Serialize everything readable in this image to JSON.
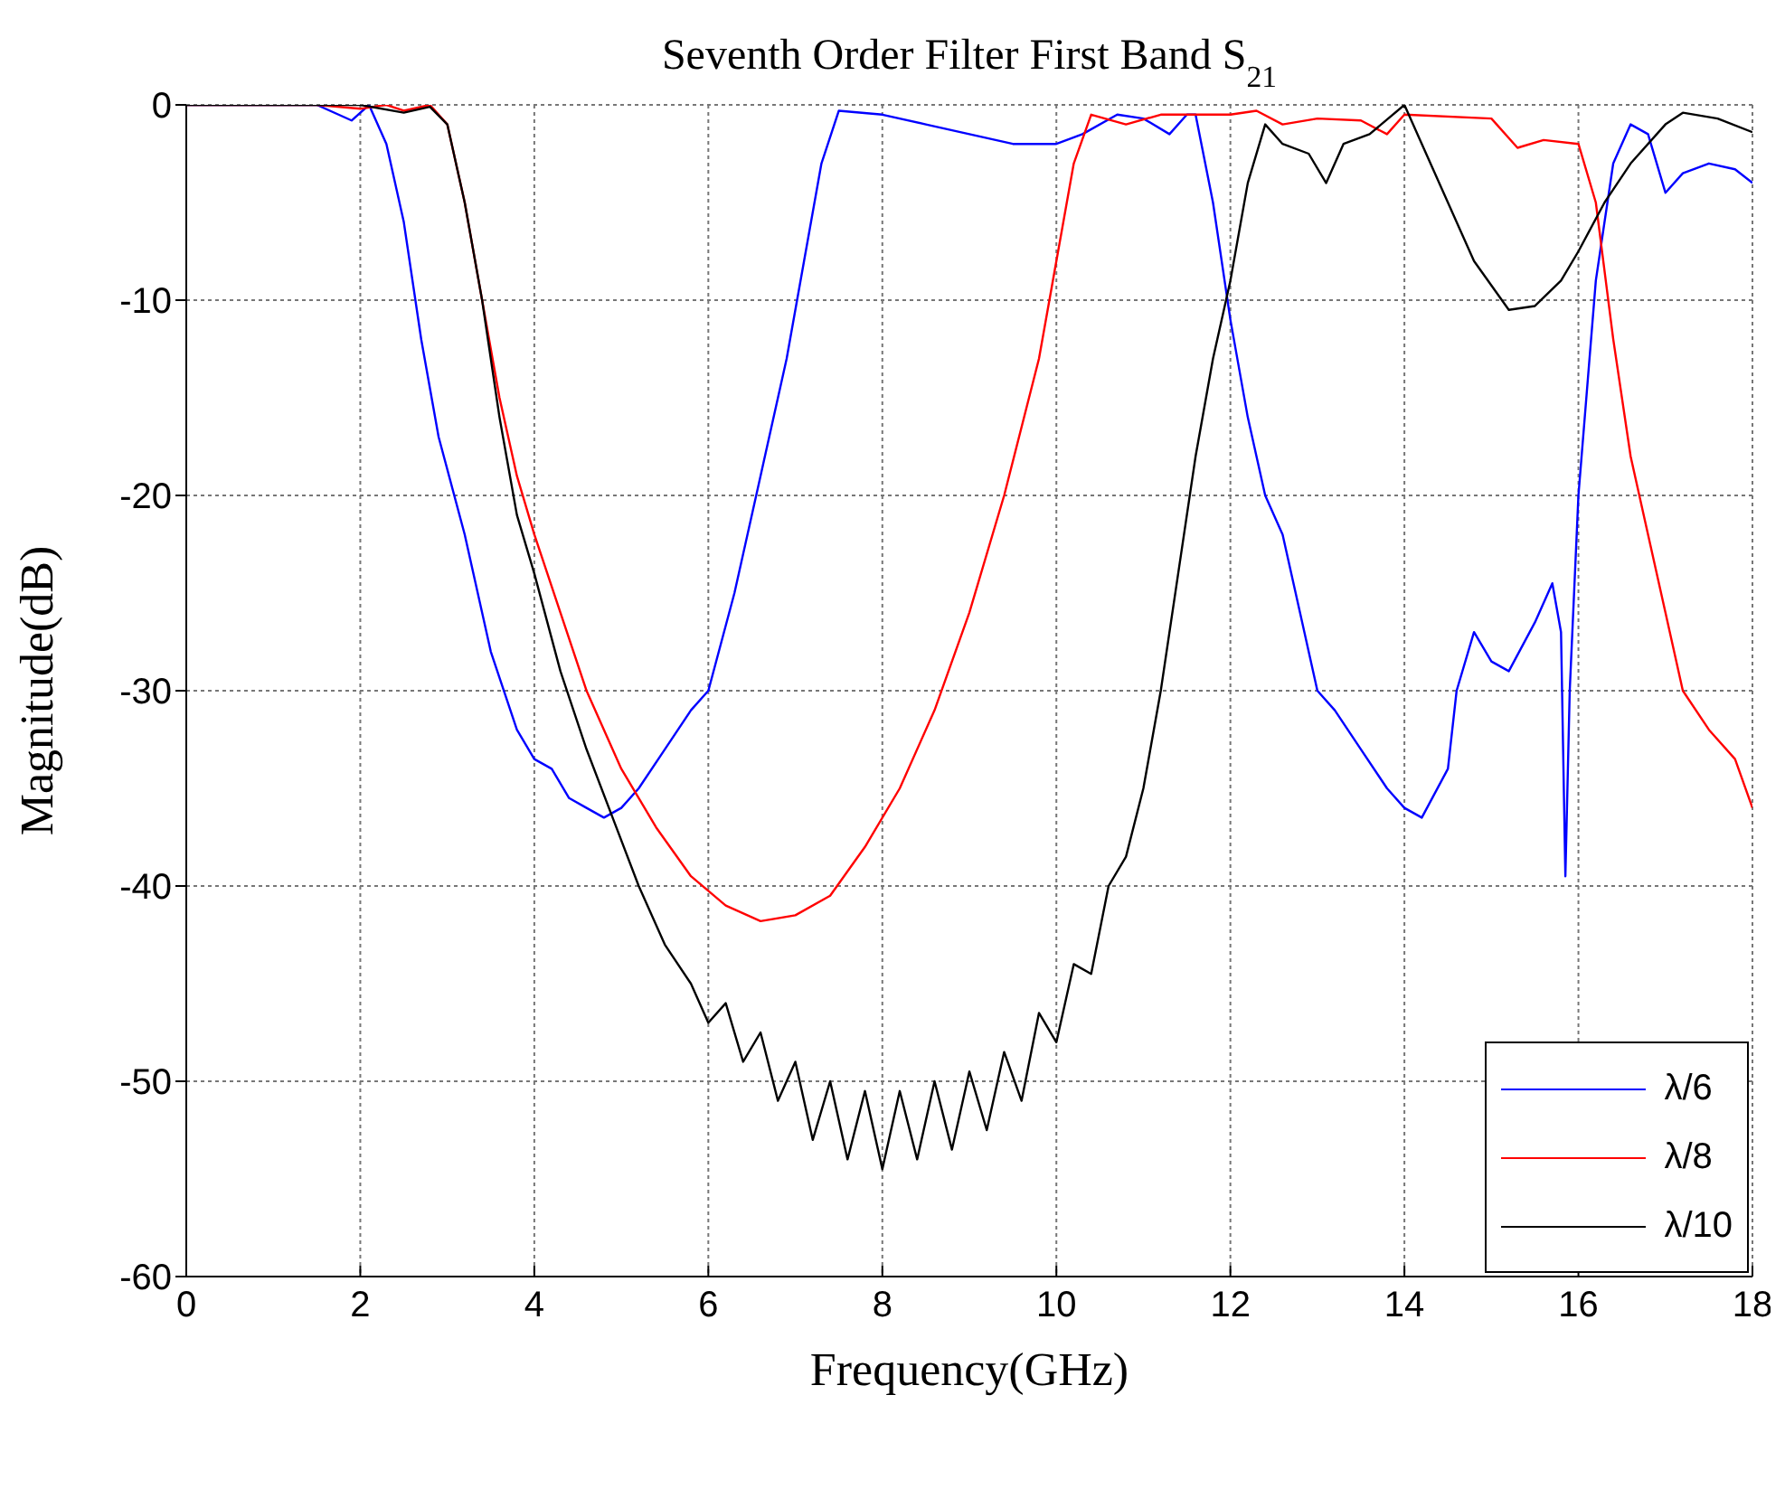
{
  "chart_data": {
    "type": "line",
    "title": "Seventh Order Filter First Band S$_{21}$",
    "xlabel": "Frequency(GHz)",
    "ylabel": "Magnitude(dB)",
    "xlim": [
      0,
      18
    ],
    "xticks": [
      0,
      2,
      4,
      6,
      8,
      10,
      12,
      14,
      16,
      18
    ],
    "ylim": [
      -60,
      0
    ],
    "yticks": [
      -60,
      -50,
      -40,
      -30,
      -20,
      -10,
      0
    ],
    "grid": true,
    "legend": "bottom right",
    "line_style": "solid",
    "marker": "none",
    "series": [
      {
        "name": "λ/6",
        "color": "#0000ff",
        "x": [
          0,
          1.5,
          1.9,
          2.1,
          2.3,
          2.5,
          2.7,
          2.9,
          3.2,
          3.5,
          3.8,
          4.0,
          4.2,
          4.4,
          4.6,
          4.8,
          5.0,
          5.2,
          5.5,
          5.8,
          6.0,
          6.3,
          6.6,
          6.9,
          7.1,
          7.3,
          7.5,
          8.0,
          8.5,
          9.0,
          9.5,
          10.0,
          10.3,
          10.7,
          11.0,
          11.3,
          11.5,
          11.6,
          11.8,
          12.0,
          12.2,
          12.4,
          12.6,
          12.8,
          13.0,
          13.2,
          13.5,
          13.8,
          14.0,
          14.2,
          14.5,
          14.6,
          14.8,
          15.0,
          15.2,
          15.5,
          15.7,
          15.8,
          15.85,
          15.9,
          16.0,
          16.2,
          16.4,
          16.6,
          16.8,
          17.0,
          17.2,
          17.5,
          17.8,
          18.0
        ],
        "values": [
          0,
          0,
          -0.8,
          0,
          -2,
          -6,
          -12,
          -17,
          -22,
          -28,
          -32,
          -33.5,
          -34,
          -35.5,
          -36,
          -36.5,
          -36,
          -35,
          -33,
          -31,
          -30,
          -25,
          -19,
          -13,
          -8,
          -3,
          -0.3,
          -0.5,
          -1,
          -1.5,
          -2,
          -2,
          -1.5,
          -0.5,
          -0.7,
          -1.5,
          -0.5,
          -0.5,
          -5,
          -11,
          -16,
          -20,
          -22,
          -26,
          -30,
          -31,
          -33,
          -35,
          -36,
          -36.5,
          -34,
          -30,
          -27,
          -28.5,
          -29,
          -26.5,
          -24.5,
          -27,
          -39.5,
          -30,
          -20,
          -9,
          -3,
          -1,
          -1.5,
          -4.5,
          -3.5,
          -3,
          -3.3,
          -4
        ]
      },
      {
        "name": "λ/8",
        "color": "#ff0000",
        "x": [
          0,
          1.5,
          2,
          2.3,
          2.5,
          2.8,
          3.0,
          3.2,
          3.4,
          3.6,
          3.8,
          4.0,
          4.3,
          4.6,
          5.0,
          5.4,
          5.8,
          6.2,
          6.6,
          7.0,
          7.4,
          7.8,
          8.2,
          8.6,
          9.0,
          9.4,
          9.8,
          10.0,
          10.2,
          10.4,
          10.8,
          11.2,
          12.0,
          12.3,
          12.6,
          13.0,
          13.5,
          13.8,
          14.0,
          15.0,
          15.3,
          15.6,
          16.0,
          16.2,
          16.4,
          16.6,
          16.8,
          17.0,
          17.2,
          17.5,
          17.8,
          18.0
        ],
        "values": [
          0,
          0,
          -0.2,
          0,
          -0.3,
          0,
          -1,
          -5,
          -10,
          -15,
          -19,
          -22,
          -26,
          -30,
          -34,
          -37,
          -39.5,
          -41,
          -41.8,
          -41.5,
          -40.5,
          -38,
          -35,
          -31,
          -26,
          -20,
          -13,
          -8,
          -3,
          -0.5,
          -1,
          -0.5,
          -0.5,
          -0.3,
          -1,
          -0.7,
          -0.8,
          -1.5,
          -0.5,
          -0.7,
          -2.2,
          -1.8,
          -2,
          -5,
          -12,
          -18,
          -22,
          -26,
          -30,
          -32,
          -33.5,
          -36
        ]
      },
      {
        "name": "λ/10",
        "color": "#000000",
        "x": [
          0,
          2,
          2.5,
          2.8,
          3.0,
          3.2,
          3.4,
          3.6,
          3.8,
          4.0,
          4.3,
          4.6,
          4.9,
          5.2,
          5.5,
          5.8,
          6.0,
          6.2,
          6.4,
          6.6,
          6.8,
          7.0,
          7.2,
          7.4,
          7.6,
          7.8,
          8.0,
          8.2,
          8.4,
          8.6,
          8.8,
          9.0,
          9.2,
          9.4,
          9.6,
          9.8,
          10.0,
          10.2,
          10.4,
          10.6,
          10.8,
          11.0,
          11.2,
          11.4,
          11.6,
          11.8,
          12.0,
          12.2,
          12.4,
          12.6,
          12.9,
          13.1,
          13.3,
          13.6,
          14.0,
          14.2,
          14.5,
          14.8,
          15.2,
          15.5,
          15.8,
          16.0,
          16.3,
          16.6,
          17.0,
          17.2,
          17.6,
          18.0
        ],
        "values": [
          0,
          0,
          -0.4,
          -0.1,
          -1,
          -5,
          -10,
          -16,
          -21,
          -24,
          -29,
          -33,
          -36.5,
          -40,
          -43,
          -45,
          -47,
          -46,
          -49,
          -47.5,
          -51,
          -49,
          -53,
          -50,
          -54,
          -50.5,
          -54.5,
          -50.5,
          -54,
          -50,
          -53.5,
          -49.5,
          -52.5,
          -48.5,
          -51,
          -46.5,
          -48,
          -44,
          -44.5,
          -40,
          -38.5,
          -35,
          -30,
          -24,
          -18,
          -13,
          -9,
          -4,
          -1,
          -2,
          -2.5,
          -4,
          -2,
          -1.5,
          0,
          -2,
          -5,
          -8,
          -10.5,
          -10.3,
          -9,
          -7.5,
          -5,
          -3,
          -1,
          -0.4,
          -0.7,
          -1.4
        ]
      }
    ]
  }
}
